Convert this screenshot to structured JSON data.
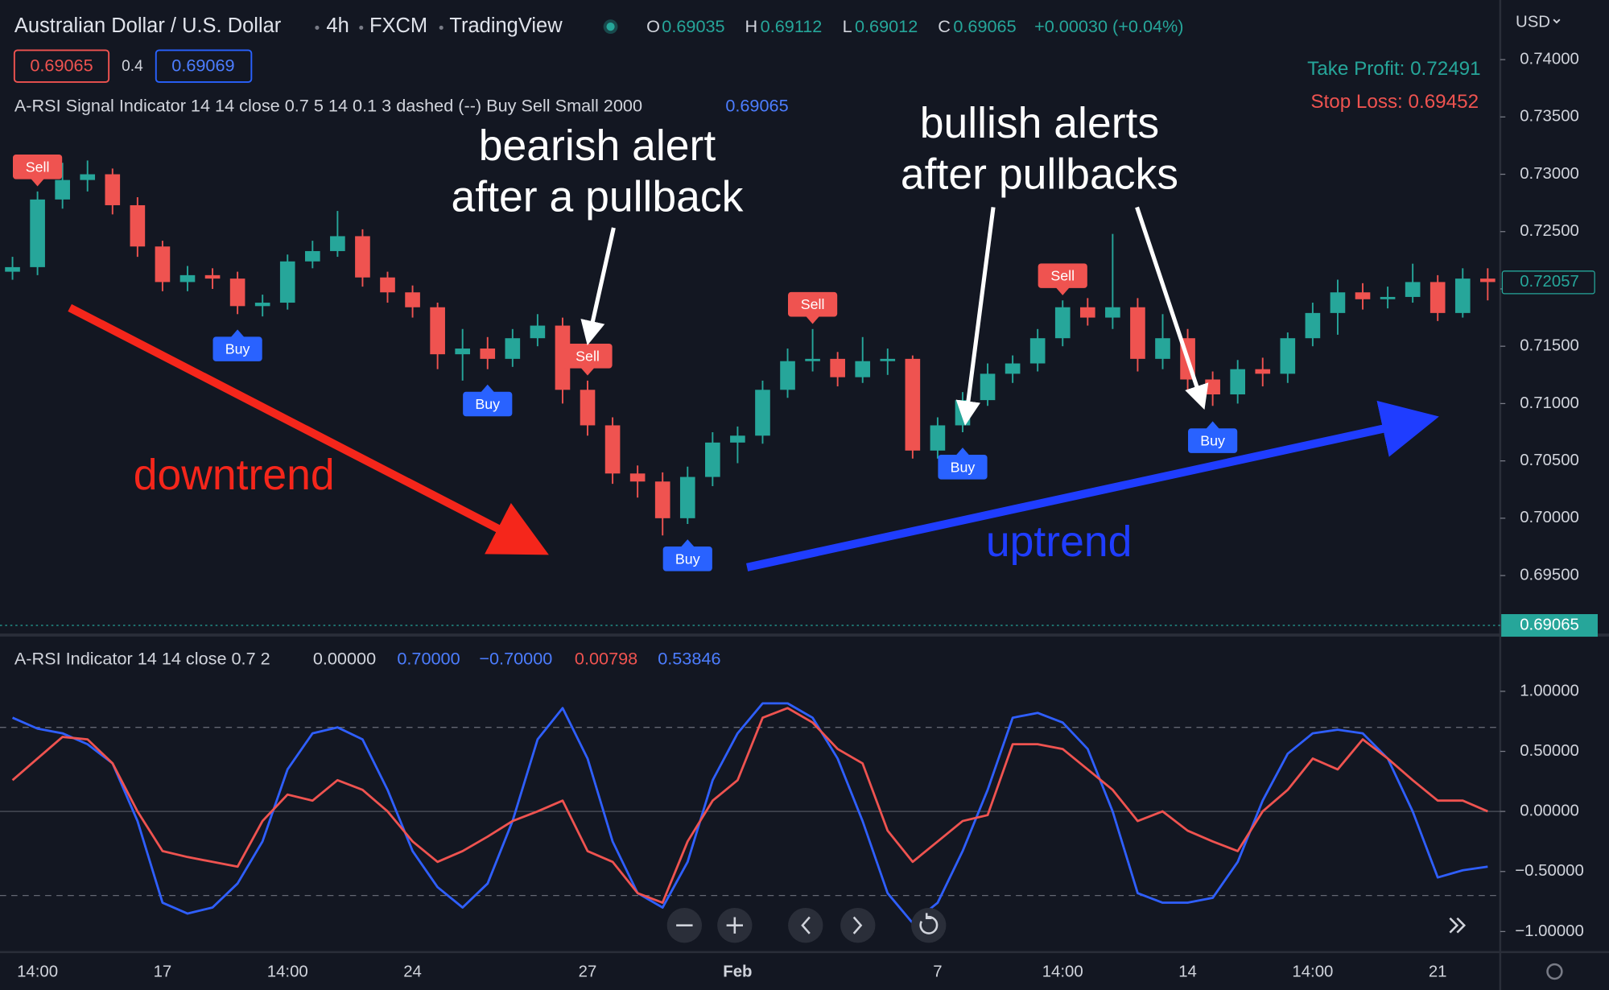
{
  "header": {
    "symbol": "Australian Dollar / U.S. Dollar",
    "interval": "4h",
    "exchange": "FXCM",
    "platform": "TradingView",
    "ohlc": [
      {
        "key": "O",
        "value": "0.69035"
      },
      {
        "key": "H",
        "value": "0.69112"
      },
      {
        "key": "L",
        "value": "0.69012"
      },
      {
        "key": "C",
        "value": "0.69065"
      }
    ],
    "change": "+0.00030 (+0.04%)",
    "sell_price": "0.69065",
    "spread": "0.4",
    "buy_price": "0.69069"
  },
  "chart_data": [
    {
      "type": "candlestick",
      "legend": {
        "text": "A-RSI Signal Indicator 14 14 close 0.7 5 14 0.1 3 dashed (--) Buy Sell Small 2000",
        "value": "0.69065"
      },
      "take_profit": "Take Profit: 0.72491",
      "stop_loss": "Stop Loss: 0.69452",
      "currency": "USD",
      "up_color": "#26a69a",
      "down_color": "#ef5350",
      "open": [
        0.7215,
        0.7219,
        0.7278,
        0.7295,
        0.73,
        0.7273,
        0.7237,
        0.7206,
        0.7212,
        0.7209,
        0.7185,
        0.7188,
        0.7224,
        0.7233,
        0.7246,
        0.721,
        0.7197,
        0.7184,
        0.7143,
        0.7148,
        0.7139,
        0.7157,
        0.7168,
        0.7112,
        0.7081,
        0.7039,
        0.7032,
        0.7,
        0.7036,
        0.7066,
        0.7072,
        0.7112,
        0.7137,
        0.7139,
        0.7123,
        0.7137,
        0.7139,
        0.7059,
        0.7081,
        0.7103,
        0.7126,
        0.7135,
        0.7157,
        0.7184,
        0.7175,
        0.7184,
        0.7139,
        0.7157,
        0.7121,
        0.7108,
        0.713,
        0.7126,
        0.7157,
        0.7179,
        0.7197,
        0.7191,
        0.7193,
        0.7206,
        0.7179,
        0.7209
      ],
      "high": [
        0.7228,
        0.7285,
        0.731,
        0.7312,
        0.7305,
        0.728,
        0.7242,
        0.722,
        0.7218,
        0.7215,
        0.7195,
        0.723,
        0.7242,
        0.7268,
        0.7252,
        0.7215,
        0.7203,
        0.7188,
        0.7165,
        0.7158,
        0.7165,
        0.7178,
        0.7175,
        0.712,
        0.7088,
        0.7046,
        0.704,
        0.7045,
        0.7075,
        0.708,
        0.712,
        0.7148,
        0.7165,
        0.7145,
        0.7158,
        0.7148,
        0.7142,
        0.7088,
        0.711,
        0.7135,
        0.7142,
        0.7165,
        0.719,
        0.7192,
        0.7248,
        0.7192,
        0.7178,
        0.7165,
        0.7128,
        0.7138,
        0.714,
        0.7162,
        0.7188,
        0.7208,
        0.7205,
        0.7202,
        0.7222,
        0.7212,
        0.7218,
        0.7218
      ],
      "low": [
        0.7208,
        0.7212,
        0.727,
        0.7285,
        0.7265,
        0.7228,
        0.7198,
        0.7198,
        0.72,
        0.7178,
        0.7176,
        0.7182,
        0.7218,
        0.7228,
        0.7202,
        0.7188,
        0.7175,
        0.713,
        0.712,
        0.713,
        0.7132,
        0.715,
        0.71,
        0.7072,
        0.703,
        0.7018,
        0.6985,
        0.6995,
        0.7028,
        0.7048,
        0.7065,
        0.7105,
        0.7128,
        0.7115,
        0.7118,
        0.7125,
        0.7052,
        0.7052,
        0.7075,
        0.7098,
        0.7118,
        0.7128,
        0.715,
        0.7168,
        0.7165,
        0.7128,
        0.713,
        0.7112,
        0.7098,
        0.71,
        0.7115,
        0.7118,
        0.715,
        0.716,
        0.7182,
        0.7183,
        0.7188,
        0.7172,
        0.7175,
        0.719
      ],
      "close": [
        0.7219,
        0.7278,
        0.7295,
        0.73,
        0.7273,
        0.7237,
        0.7206,
        0.7212,
        0.7209,
        0.7185,
        0.7188,
        0.7224,
        0.7233,
        0.7246,
        0.721,
        0.7197,
        0.7184,
        0.7143,
        0.7148,
        0.7139,
        0.7157,
        0.7168,
        0.7112,
        0.7081,
        0.7039,
        0.7032,
        0.7,
        0.7036,
        0.7066,
        0.7072,
        0.7112,
        0.7137,
        0.7139,
        0.7123,
        0.7137,
        0.7139,
        0.7059,
        0.7081,
        0.7103,
        0.7126,
        0.7135,
        0.7157,
        0.7184,
        0.7175,
        0.7184,
        0.7139,
        0.7157,
        0.7121,
        0.7108,
        0.713,
        0.7126,
        0.7157,
        0.7179,
        0.7197,
        0.7191,
        0.7193,
        0.7206,
        0.7179,
        0.7209,
        0.7206
      ],
      "ylim": [
        0.6899,
        0.7452
      ],
      "yticks": [
        {
          "value": 0.74,
          "label": "0.74000"
        },
        {
          "value": 0.735,
          "label": "0.73500"
        },
        {
          "value": 0.73,
          "label": "0.73000"
        },
        {
          "value": 0.725,
          "label": "0.72500"
        },
        {
          "value": 0.72,
          "label": "0.72000"
        },
        {
          "value": 0.715,
          "label": "0.71500"
        },
        {
          "value": 0.71,
          "label": "0.71000"
        },
        {
          "value": 0.705,
          "label": "0.70500"
        },
        {
          "value": 0.7,
          "label": "0.70000"
        },
        {
          "value": 0.695,
          "label": "0.69500"
        }
      ],
      "last_price": {
        "value": 0.72057,
        "label": "0.72057"
      },
      "current_price": {
        "value": 0.69065,
        "label": "0.69065"
      },
      "signals": [
        {
          "label": "Sell",
          "at": 1
        },
        {
          "label": "Buy",
          "at": 9
        },
        {
          "label": "Buy",
          "at": 19
        },
        {
          "label": "Sell",
          "at": 23
        },
        {
          "label": "Buy",
          "at": 27
        },
        {
          "label": "Sell",
          "at": 32
        },
        {
          "label": "Buy",
          "at": 38
        },
        {
          "label": "Sell",
          "at": 42
        },
        {
          "label": "Buy",
          "at": 48
        }
      ],
      "annotations": {
        "bearish": [
          "bearish alert",
          "after a pullback"
        ],
        "bullish": [
          "bullish alerts",
          "after pullbacks"
        ],
        "downtrend": "downtrend",
        "uptrend": "uptrend"
      }
    },
    {
      "type": "line",
      "legend": {
        "text": "A-RSI Indicator 14 14 close 0.7 2",
        "values": [
          "0.00000",
          "0.70000",
          "−0.70000",
          "0.00798",
          "0.53846"
        ]
      },
      "categories": [
        null,
        "14:00",
        null,
        null,
        null,
        null,
        "17",
        null,
        null,
        null,
        null,
        "14:00",
        null,
        null,
        null,
        null,
        "24",
        null,
        null,
        null,
        null,
        null,
        null,
        "27",
        null,
        null,
        null,
        null,
        null,
        "Feb",
        null,
        null,
        null,
        null,
        null,
        null,
        null,
        "7",
        null,
        null,
        null,
        null,
        "14:00",
        null,
        null,
        null,
        null,
        "14",
        null,
        null,
        null,
        null,
        "14:00",
        null,
        null,
        null,
        null,
        "21",
        null,
        null
      ],
      "series": [
        {
          "color": "#2f5fff",
          "values": [
            0.78,
            0.69,
            0.65,
            0.56,
            0.4,
            -0.08,
            -0.76,
            -0.85,
            -0.8,
            -0.6,
            -0.25,
            0.35,
            0.65,
            0.7,
            0.6,
            0.18,
            -0.33,
            -0.63,
            -0.8,
            -0.6,
            -0.08,
            0.6,
            0.86,
            0.44,
            -0.25,
            -0.68,
            -0.8,
            -0.42,
            0.26,
            0.65,
            0.9,
            0.9,
            0.78,
            0.44,
            -0.08,
            -0.68,
            -0.93,
            -0.76,
            -0.33,
            0.18,
            0.78,
            0.82,
            0.74,
            0.52,
            0,
            -0.68,
            -0.76,
            -0.76,
            -0.72,
            -0.42,
            0.09,
            0.48,
            0.65,
            0.68,
            0.65,
            0.44,
            0,
            -0.55,
            -0.49,
            -0.46
          ]
        },
        {
          "color": "#ef5350",
          "values": [
            0.26,
            0.44,
            0.62,
            0.6,
            0.4,
            0,
            -0.33,
            -0.38,
            -0.42,
            -0.46,
            -0.08,
            0.14,
            0.09,
            0.26,
            0.18,
            0,
            -0.25,
            -0.42,
            -0.33,
            -0.21,
            -0.08,
            0,
            0.09,
            -0.33,
            -0.42,
            -0.68,
            -0.76,
            -0.25,
            0.09,
            0.26,
            0.78,
            0.86,
            0.74,
            0.52,
            0.4,
            -0.16,
            -0.42,
            -0.25,
            -0.08,
            -0.03,
            0.56,
            0.56,
            0.52,
            0.35,
            0.18,
            -0.08,
            0,
            -0.16,
            -0.25,
            -0.33,
            0,
            0.18,
            0.44,
            0.35,
            0.6,
            0.44,
            0.26,
            0.09,
            0.09,
            0
          ]
        }
      ],
      "levels": [
        0.7,
        0,
        -0.7
      ],
      "ylim": [
        -1.145,
        1.46
      ],
      "yticks": [
        {
          "value": 1,
          "label": "1.00000"
        },
        {
          "value": 0.5,
          "label": "0.50000"
        },
        {
          "value": 0,
          "label": "0.00000"
        },
        {
          "value": -0.5,
          "label": "−0.50000"
        },
        {
          "value": -1,
          "label": "−1.00000"
        }
      ]
    }
  ]
}
